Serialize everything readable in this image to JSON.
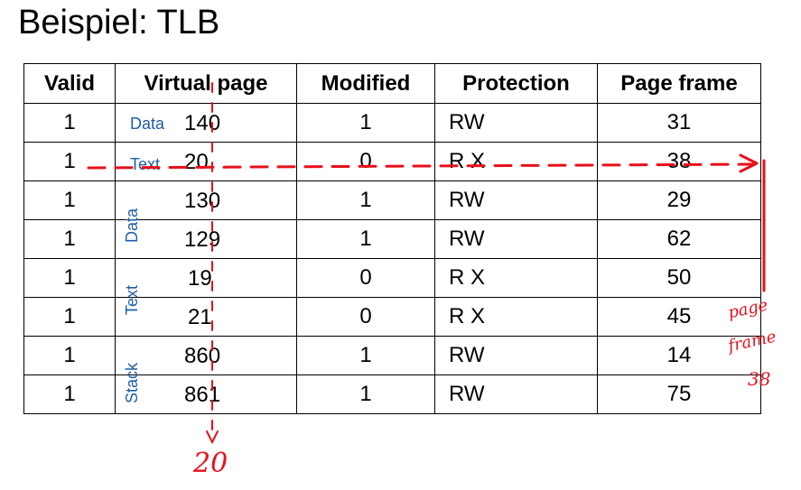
{
  "title": "Beispiel: TLB",
  "table": {
    "headers": [
      "Valid",
      "Virtual page",
      "Modified",
      "Protection",
      "Page frame"
    ],
    "rows": [
      {
        "valid": "1",
        "segment": "Data",
        "virtual_page": "140",
        "modified": "1",
        "protection": "RW",
        "page_frame": "31"
      },
      {
        "valid": "1",
        "segment": "Text",
        "virtual_page": "20",
        "modified": "0",
        "protection": "R X",
        "page_frame": "38"
      },
      {
        "valid": "1",
        "segment": "Data",
        "virtual_page": "130",
        "modified": "1",
        "protection": "RW",
        "page_frame": "29"
      },
      {
        "valid": "1",
        "segment": "",
        "virtual_page": "129",
        "modified": "1",
        "protection": "RW",
        "page_frame": "62"
      },
      {
        "valid": "1",
        "segment": "Text",
        "virtual_page": "19",
        "modified": "0",
        "protection": "R X",
        "page_frame": "50"
      },
      {
        "valid": "1",
        "segment": "",
        "virtual_page": "21",
        "modified": "0",
        "protection": "R X",
        "page_frame": "45"
      },
      {
        "valid": "1",
        "segment": "Stack",
        "virtual_page": "860",
        "modified": "1",
        "protection": "RW",
        "page_frame": "14"
      },
      {
        "valid": "1",
        "segment": "",
        "virtual_page": "861",
        "modified": "1",
        "protection": "RW",
        "page_frame": "75"
      }
    ]
  },
  "annotations": {
    "bottom_number": "20",
    "side_note_line1": "page",
    "side_note_line2": "frame",
    "side_note_line3": "38",
    "ink_color": "#e8101a",
    "label_color": "#1f5fa8"
  }
}
